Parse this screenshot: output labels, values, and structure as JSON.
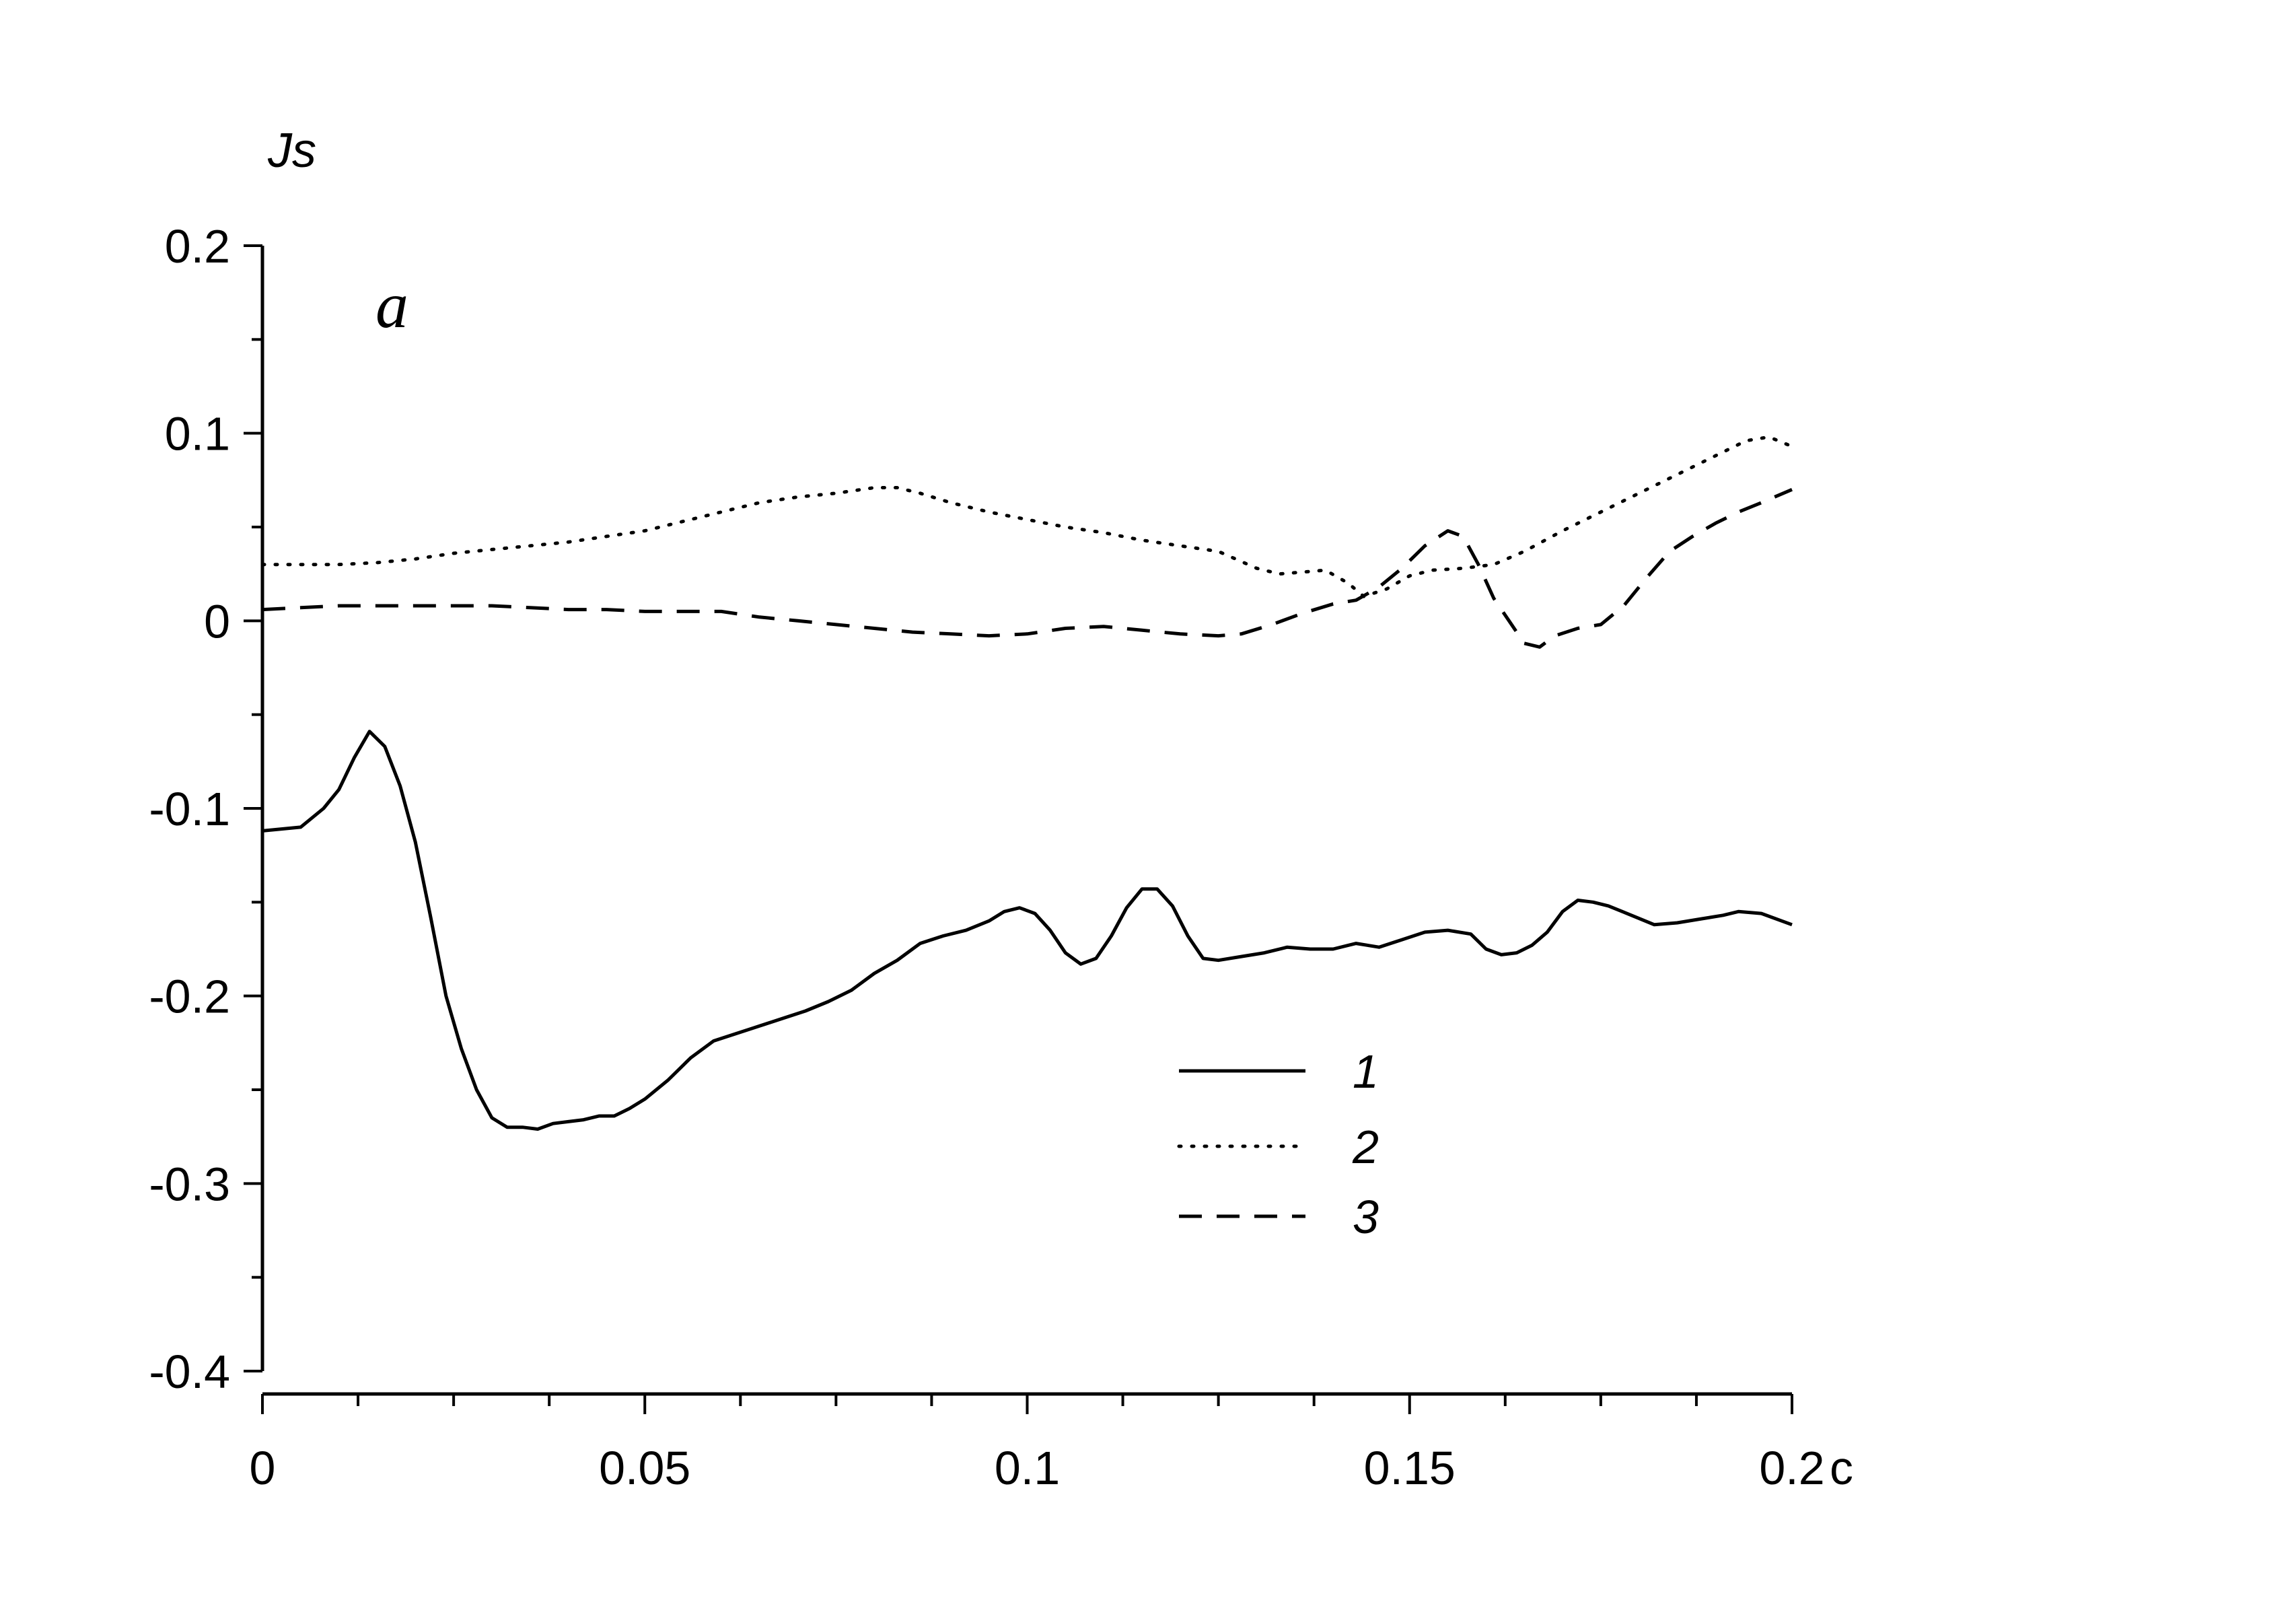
{
  "chart_data": {
    "type": "line",
    "panel_label": "a",
    "ylabel": "Js",
    "xlabel": "",
    "xunit": "c",
    "xlim": [
      0,
      0.2
    ],
    "ylim": [
      -0.4,
      0.2
    ],
    "x_ticks": [
      0,
      0.05,
      0.1,
      0.15,
      0.2
    ],
    "x_tick_labels": [
      "0",
      "0.05",
      "0.1",
      "0.15",
      "0.2"
    ],
    "y_ticks": [
      0.2,
      0.1,
      0,
      -0.1,
      -0.2,
      -0.3,
      -0.4
    ],
    "y_tick_labels": [
      "0.2",
      "0.1",
      "0",
      "-0.1",
      "-0.2",
      "-0.3",
      "-0.4"
    ],
    "x_minor_step": 0.0125,
    "y_minor_step": 0.05,
    "grid": false,
    "legend_position": "bottom-center",
    "series": [
      {
        "name": "1",
        "style": "solid",
        "color": "#000000",
        "points": [
          [
            0,
            -0.112
          ],
          [
            0.005,
            -0.11
          ],
          [
            0.008,
            -0.1
          ],
          [
            0.01,
            -0.09
          ],
          [
            0.012,
            -0.073
          ],
          [
            0.014,
            -0.059
          ],
          [
            0.016,
            -0.067
          ],
          [
            0.018,
            -0.088
          ],
          [
            0.02,
            -0.118
          ],
          [
            0.022,
            -0.158
          ],
          [
            0.024,
            -0.2
          ],
          [
            0.026,
            -0.228
          ],
          [
            0.028,
            -0.25
          ],
          [
            0.03,
            -0.265
          ],
          [
            0.032,
            -0.27
          ],
          [
            0.034,
            -0.27
          ],
          [
            0.036,
            -0.271
          ],
          [
            0.038,
            -0.268
          ],
          [
            0.04,
            -0.267
          ],
          [
            0.042,
            -0.266
          ],
          [
            0.044,
            -0.264
          ],
          [
            0.046,
            -0.264
          ],
          [
            0.048,
            -0.26
          ],
          [
            0.05,
            -0.255
          ],
          [
            0.053,
            -0.245
          ],
          [
            0.056,
            -0.233
          ],
          [
            0.059,
            -0.224
          ],
          [
            0.062,
            -0.22
          ],
          [
            0.065,
            -0.216
          ],
          [
            0.068,
            -0.212
          ],
          [
            0.071,
            -0.208
          ],
          [
            0.074,
            -0.203
          ],
          [
            0.077,
            -0.197
          ],
          [
            0.08,
            -0.188
          ],
          [
            0.083,
            -0.181
          ],
          [
            0.086,
            -0.172
          ],
          [
            0.089,
            -0.168
          ],
          [
            0.092,
            -0.165
          ],
          [
            0.095,
            -0.16
          ],
          [
            0.097,
            -0.155
          ],
          [
            0.099,
            -0.153
          ],
          [
            0.101,
            -0.156
          ],
          [
            0.103,
            -0.165
          ],
          [
            0.105,
            -0.177
          ],
          [
            0.107,
            -0.183
          ],
          [
            0.109,
            -0.18
          ],
          [
            0.111,
            -0.168
          ],
          [
            0.113,
            -0.153
          ],
          [
            0.115,
            -0.143
          ],
          [
            0.117,
            -0.143
          ],
          [
            0.119,
            -0.152
          ],
          [
            0.121,
            -0.168
          ],
          [
            0.123,
            -0.18
          ],
          [
            0.125,
            -0.181
          ],
          [
            0.128,
            -0.179
          ],
          [
            0.131,
            -0.177
          ],
          [
            0.134,
            -0.174
          ],
          [
            0.137,
            -0.175
          ],
          [
            0.14,
            -0.175
          ],
          [
            0.143,
            -0.172
          ],
          [
            0.146,
            -0.174
          ],
          [
            0.149,
            -0.17
          ],
          [
            0.152,
            -0.166
          ],
          [
            0.155,
            -0.165
          ],
          [
            0.158,
            -0.167
          ],
          [
            0.16,
            -0.175
          ],
          [
            0.162,
            -0.178
          ],
          [
            0.164,
            -0.177
          ],
          [
            0.166,
            -0.173
          ],
          [
            0.168,
            -0.166
          ],
          [
            0.17,
            -0.155
          ],
          [
            0.172,
            -0.149
          ],
          [
            0.174,
            -0.15
          ],
          [
            0.176,
            -0.152
          ],
          [
            0.179,
            -0.157
          ],
          [
            0.182,
            -0.162
          ],
          [
            0.185,
            -0.161
          ],
          [
            0.188,
            -0.159
          ],
          [
            0.191,
            -0.157
          ],
          [
            0.193,
            -0.155
          ],
          [
            0.196,
            -0.156
          ],
          [
            0.2,
            -0.162
          ]
        ]
      },
      {
        "name": "2",
        "style": "dotted",
        "color": "#000000",
        "points": [
          [
            0,
            0.03
          ],
          [
            0.005,
            0.03
          ],
          [
            0.01,
            0.03
          ],
          [
            0.015,
            0.031
          ],
          [
            0.02,
            0.033
          ],
          [
            0.025,
            0.036
          ],
          [
            0.03,
            0.038
          ],
          [
            0.035,
            0.04
          ],
          [
            0.04,
            0.042
          ],
          [
            0.045,
            0.045
          ],
          [
            0.05,
            0.048
          ],
          [
            0.055,
            0.053
          ],
          [
            0.06,
            0.058
          ],
          [
            0.065,
            0.063
          ],
          [
            0.07,
            0.066
          ],
          [
            0.075,
            0.068
          ],
          [
            0.08,
            0.071
          ],
          [
            0.083,
            0.071
          ],
          [
            0.086,
            0.068
          ],
          [
            0.09,
            0.063
          ],
          [
            0.095,
            0.058
          ],
          [
            0.1,
            0.054
          ],
          [
            0.105,
            0.05
          ],
          [
            0.11,
            0.047
          ],
          [
            0.115,
            0.043
          ],
          [
            0.12,
            0.04
          ],
          [
            0.125,
            0.037
          ],
          [
            0.13,
            0.028
          ],
          [
            0.133,
            0.025
          ],
          [
            0.136,
            0.026
          ],
          [
            0.139,
            0.027
          ],
          [
            0.142,
            0.02
          ],
          [
            0.144,
            0.013
          ],
          [
            0.147,
            0.017
          ],
          [
            0.15,
            0.024
          ],
          [
            0.153,
            0.027
          ],
          [
            0.157,
            0.028
          ],
          [
            0.161,
            0.03
          ],
          [
            0.165,
            0.037
          ],
          [
            0.17,
            0.048
          ],
          [
            0.175,
            0.058
          ],
          [
            0.18,
            0.068
          ],
          [
            0.185,
            0.078
          ],
          [
            0.19,
            0.088
          ],
          [
            0.194,
            0.096
          ],
          [
            0.197,
            0.098
          ],
          [
            0.2,
            0.093
          ]
        ]
      },
      {
        "name": "3",
        "style": "dashed",
        "color": "#000000",
        "points": [
          [
            0,
            0.006
          ],
          [
            0.005,
            0.007
          ],
          [
            0.01,
            0.008
          ],
          [
            0.015,
            0.008
          ],
          [
            0.02,
            0.008
          ],
          [
            0.025,
            0.008
          ],
          [
            0.03,
            0.008
          ],
          [
            0.035,
            0.007
          ],
          [
            0.04,
            0.006
          ],
          [
            0.045,
            0.006
          ],
          [
            0.05,
            0.005
          ],
          [
            0.055,
            0.005
          ],
          [
            0.06,
            0.005
          ],
          [
            0.065,
            0.002
          ],
          [
            0.07,
            0
          ],
          [
            0.075,
            -0.002
          ],
          [
            0.08,
            -0.004
          ],
          [
            0.085,
            -0.006
          ],
          [
            0.09,
            -0.007
          ],
          [
            0.095,
            -0.008
          ],
          [
            0.1,
            -0.007
          ],
          [
            0.105,
            -0.004
          ],
          [
            0.11,
            -0.003
          ],
          [
            0.115,
            -0.005
          ],
          [
            0.12,
            -0.007
          ],
          [
            0.125,
            -0.008
          ],
          [
            0.128,
            -0.007
          ],
          [
            0.132,
            -0.002
          ],
          [
            0.136,
            0.004
          ],
          [
            0.14,
            0.009
          ],
          [
            0.143,
            0.011
          ],
          [
            0.146,
            0.018
          ],
          [
            0.149,
            0.028
          ],
          [
            0.152,
            0.04
          ],
          [
            0.155,
            0.048
          ],
          [
            0.157,
            0.045
          ],
          [
            0.159,
            0.03
          ],
          [
            0.161,
            0.012
          ],
          [
            0.163,
            0
          ],
          [
            0.165,
            -0.012
          ],
          [
            0.167,
            -0.014
          ],
          [
            0.169,
            -0.008
          ],
          [
            0.172,
            -0.004
          ],
          [
            0.175,
            -0.002
          ],
          [
            0.178,
            0.008
          ],
          [
            0.181,
            0.023
          ],
          [
            0.184,
            0.037
          ],
          [
            0.187,
            0.045
          ],
          [
            0.19,
            0.052
          ],
          [
            0.193,
            0.058
          ],
          [
            0.196,
            0.063
          ],
          [
            0.2,
            0.07
          ]
        ]
      }
    ]
  }
}
